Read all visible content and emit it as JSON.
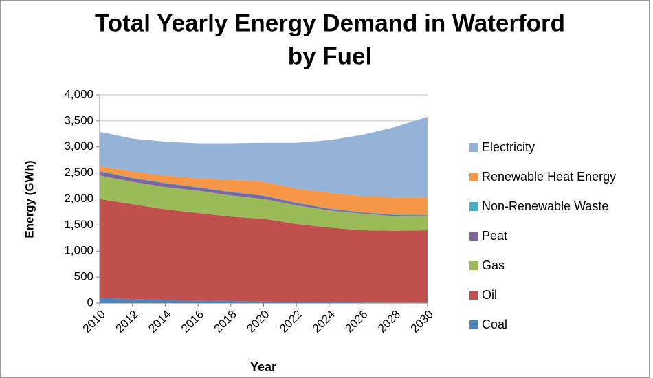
{
  "chart_data": {
    "type": "stacked-area",
    "title": [
      "Total Yearly Energy Demand in Waterford",
      "by Fuel"
    ],
    "x_label": "Year",
    "y_label": "Energy (GWh)",
    "x": [
      2010,
      2012,
      2014,
      2016,
      2018,
      2020,
      2022,
      2024,
      2026,
      2028,
      2030
    ],
    "xlim": [
      2010,
      2030
    ],
    "xticks": [
      2010,
      2012,
      2014,
      2016,
      2018,
      2020,
      2022,
      2024,
      2026,
      2028,
      2030
    ],
    "ylim": [
      0,
      4000
    ],
    "yticks": [
      0,
      500,
      {
        "value": 1000,
        "label": "1,000"
      },
      {
        "value": 1500,
        "label": "1,500"
      },
      {
        "value": 2000,
        "label": "2,000"
      },
      {
        "value": 2500,
        "label": "2,500"
      },
      {
        "value": 3000,
        "label": "3,000"
      },
      {
        "value": 3500,
        "label": "3,500"
      },
      {
        "value": 4000,
        "label": "4,000"
      }
    ],
    "grid": true,
    "legend": "right",
    "series": [
      {
        "name": "Coal",
        "color": "#4f81bd",
        "values": [
          100,
          80,
          65,
          50,
          40,
          30,
          20,
          15,
          12,
          10,
          8
        ]
      },
      {
        "name": "Oil",
        "color": "#c0504d",
        "values": [
          1900,
          1820,
          1735,
          1680,
          1620,
          1590,
          1500,
          1435,
          1388,
          1380,
          1392
        ]
      },
      {
        "name": "Gas",
        "color": "#9bbb59",
        "values": [
          450,
          430,
          430,
          430,
          410,
          380,
          360,
          330,
          320,
          280,
          270
        ]
      },
      {
        "name": "Peat",
        "color": "#8064a2",
        "values": [
          80,
          70,
          70,
          60,
          60,
          60,
          40,
          30,
          20,
          20,
          15
        ]
      },
      {
        "name": "Non-Renewable Waste",
        "color": "#4bacc6",
        "values": [
          10,
          10,
          10,
          10,
          10,
          10,
          10,
          10,
          10,
          10,
          10
        ]
      },
      {
        "name": "Renewable Heat Energy",
        "color": "#f79646",
        "values": [
          90,
          120,
          140,
          170,
          230,
          260,
          270,
          300,
          310,
          330,
          335
        ]
      },
      {
        "name": "Electricity",
        "color": "#95b3d7",
        "values": [
          660,
          630,
          650,
          670,
          700,
          750,
          880,
          1010,
          1170,
          1350,
          1550
        ]
      }
    ]
  }
}
